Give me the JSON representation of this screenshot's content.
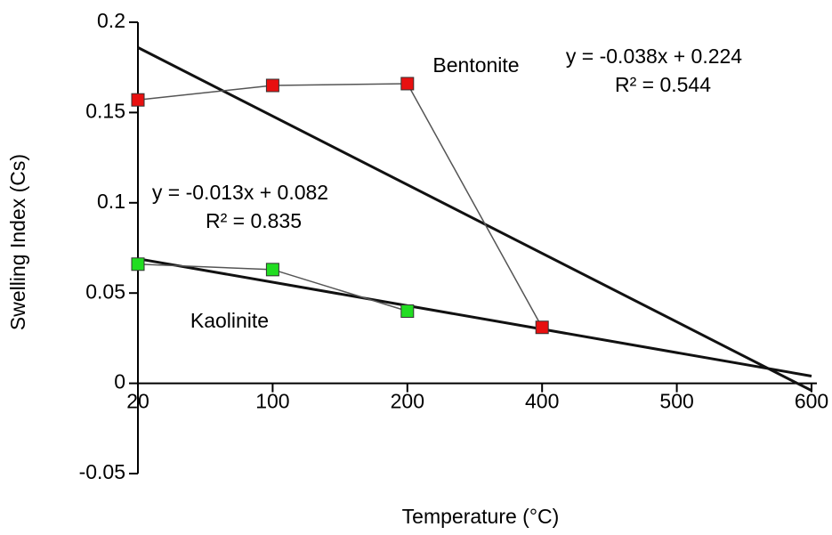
{
  "chart_data": {
    "type": "line",
    "x_label": "Temperature (°C)",
    "y_label": "Swelling Index (Cs)",
    "categories": [
      "20",
      "100",
      "200",
      "400",
      "500",
      "600"
    ],
    "series": [
      {
        "name": "Bentonite",
        "color": "#e81010",
        "values": [
          0.157,
          0.165,
          0.166,
          0.031,
          null,
          null
        ],
        "trendline": {
          "slope": -0.038,
          "intercept": 0.224,
          "equation": "y = -0.038x + 0.224",
          "r2": "R² = 0.544"
        }
      },
      {
        "name": "Kaolinite",
        "color": "#22dd22",
        "values": [
          0.066,
          0.063,
          0.04,
          null,
          null,
          null
        ],
        "trendline": {
          "slope": -0.013,
          "intercept": 0.082,
          "equation": "y = -0.013x + 0.082",
          "r2": "R² = 0.835"
        }
      }
    ],
    "ylim": [
      -0.05,
      0.2
    ],
    "yticks": [
      -0.05,
      0,
      0.05,
      0.1,
      0.15,
      0.2
    ]
  }
}
